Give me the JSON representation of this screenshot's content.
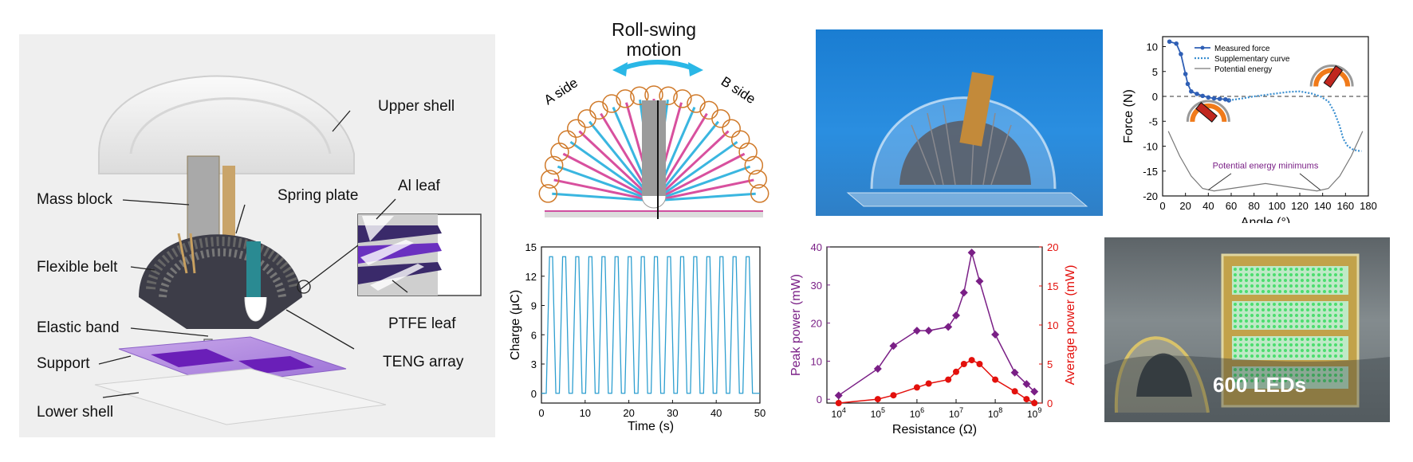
{
  "device": {
    "labels": {
      "upper_shell": "Upper shell",
      "mass_block": "Mass block",
      "spring_plate": "Spring plate",
      "al_leaf": "Al leaf",
      "flexible_belt": "Flexible belt",
      "elastic_band": "Elastic band",
      "support": "Support",
      "ptfe_leaf": "PTFE leaf",
      "teng_array": "TENG array",
      "lower_shell": "Lower shell"
    }
  },
  "schematic": {
    "title_line1": "Roll-swing",
    "title_line2": "motion",
    "a_side": "A side",
    "b_side": "B side"
  },
  "photo_overlay": "600 LEDs",
  "chart_data": [
    {
      "id": "force-angle",
      "type": "line",
      "xlabel": "Angle (°)",
      "ylabel": "Force (N)",
      "xlim": [
        0,
        180
      ],
      "ylim": [
        -20,
        12
      ],
      "xticks": [
        0,
        20,
        40,
        60,
        80,
        100,
        120,
        140,
        160,
        180
      ],
      "yticks": [
        10,
        5,
        0,
        -5,
        -10,
        -15,
        -20
      ],
      "legend": [
        "Measured force",
        "Supplementary curve",
        "Potential energy"
      ],
      "annotation": "Potential energy minimums",
      "series": [
        {
          "name": "Measured force",
          "x": [
            6,
            12,
            16,
            20,
            22,
            25,
            30,
            35,
            40,
            45,
            50,
            55,
            58
          ],
          "y": [
            11,
            10.6,
            8.5,
            4.5,
            2.5,
            1,
            0.5,
            0.1,
            -0.2,
            -0.4,
            -0.5,
            -0.6,
            -0.8
          ]
        },
        {
          "name": "Supplementary curve",
          "x": [
            58,
            70,
            80,
            90,
            100,
            110,
            120,
            130,
            138,
            145,
            150,
            155,
            158,
            162,
            166,
            170,
            174
          ],
          "y": [
            -0.8,
            -0.4,
            0,
            0.3,
            0.6,
            0.9,
            1,
            0.6,
            0,
            -1,
            -3,
            -6,
            -8.5,
            -10,
            -10.6,
            -10.9,
            -11
          ]
        },
        {
          "name": "Potential energy",
          "x": [
            5,
            15,
            25,
            35,
            45,
            60,
            90,
            120,
            135,
            145,
            155,
            165,
            175
          ],
          "y": [
            -7,
            -12,
            -16,
            -18.5,
            -19,
            -18.5,
            -17.5,
            -18.5,
            -19,
            -18.5,
            -16,
            -12,
            -7
          ]
        }
      ]
    },
    {
      "id": "charge-time",
      "type": "line",
      "xlabel": "Time (s)",
      "ylabel": "Charge (μC)",
      "xlim": [
        0,
        50
      ],
      "ylim": [
        -1,
        15
      ],
      "xticks": [
        0,
        10,
        20,
        30,
        40,
        50
      ],
      "yticks": [
        0,
        3,
        6,
        9,
        12,
        15
      ],
      "peak_times": [
        2.2,
        5.2,
        8.2,
        11.2,
        14.2,
        17.2,
        20.2,
        23.2,
        26.2,
        29.2,
        32.2,
        35.2,
        38.2,
        41.2,
        44.2,
        47.2
      ],
      "peak_value": 14,
      "baseline": 0
    },
    {
      "id": "power-resistance",
      "type": "line",
      "xlabel": "Resistance (Ω)",
      "ylabel": "Peak power (mW)",
      "y2label": "Average power (mW)",
      "xscale": "log",
      "xlim_exp": [
        3.7,
        9.2
      ],
      "ylim": [
        -1,
        40
      ],
      "y2lim": [
        0,
        20
      ],
      "xtick_exps": [
        4,
        5,
        6,
        7,
        8,
        9
      ],
      "yticks": [
        0,
        10,
        20,
        30,
        40
      ],
      "y2ticks": [
        0,
        5,
        10,
        15,
        20
      ],
      "series": [
        {
          "name": "Peak power",
          "axis": "left",
          "color": "#7a1f86",
          "x_exp": [
            4,
            5,
            5.4,
            6,
            6.3,
            6.8,
            7,
            7.2,
            7.4,
            7.6,
            8,
            8.5,
            8.8,
            9
          ],
          "y": [
            1,
            8,
            14,
            18,
            18,
            19,
            22,
            28,
            38.5,
            31,
            17,
            7,
            4,
            2
          ]
        },
        {
          "name": "Average power",
          "axis": "right",
          "color": "#e3100c",
          "x_exp": [
            4,
            5,
            5.4,
            6,
            6.3,
            6.8,
            7,
            7.2,
            7.4,
            7.6,
            8,
            8.5,
            8.8,
            9
          ],
          "y": [
            0,
            0.5,
            1,
            2,
            2.5,
            3,
            4,
            5,
            5.5,
            5,
            3,
            1.5,
            0.5,
            0
          ]
        }
      ]
    }
  ]
}
